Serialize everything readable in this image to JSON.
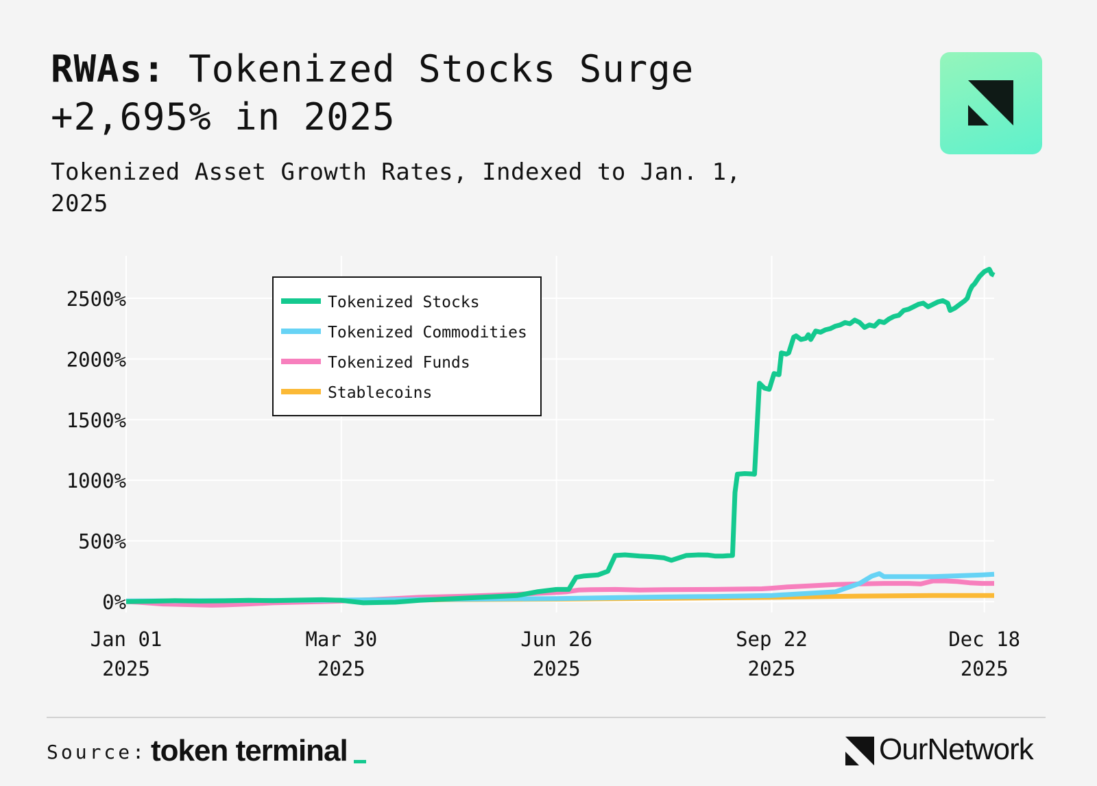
{
  "header": {
    "title_bold": "RWAs:",
    "title_rest": " Tokenized Stocks Surge +2,695% in 2025",
    "subtitle": "Tokenized Asset Growth Rates, Indexed to Jan. 1, 2025"
  },
  "footer": {
    "source_label": "Source:",
    "source_brand": "token terminal",
    "brand_name": "OurNetwork"
  },
  "colors": {
    "stocks": "#14c98f",
    "commodities": "#67d3f5",
    "funds": "#f77fbd",
    "stablecoins": "#fbb936",
    "grid": "#ffffff",
    "accent": "#5ef1cc"
  },
  "chart_data": {
    "type": "line",
    "title": "Tokenized Asset Growth Rates, Indexed to Jan. 1, 2025",
    "xlabel": "",
    "ylabel": "",
    "x_unit": "days since Jan 01 2025",
    "xlim": [
      0,
      355
    ],
    "ylim": [
      -90,
      2850
    ],
    "x_ticks": [
      {
        "x": 0,
        "line1": "Jan 01",
        "line2": "2025"
      },
      {
        "x": 88,
        "line1": "Mar 30",
        "line2": "2025"
      },
      {
        "x": 176,
        "line1": "Jun 26",
        "line2": "2025"
      },
      {
        "x": 264,
        "line1": "Sep 22",
        "line2": "2025"
      },
      {
        "x": 351,
        "line1": "Dec 18",
        "line2": "2025"
      }
    ],
    "y_ticks": [
      {
        "y": 0,
        "label": "0%"
      },
      {
        "y": 500,
        "label": "500%"
      },
      {
        "y": 1000,
        "label": "1000%"
      },
      {
        "y": 1500,
        "label": "1500%"
      },
      {
        "y": 2000,
        "label": "2000%"
      },
      {
        "y": 2500,
        "label": "2500%"
      }
    ],
    "legend": {
      "position": "top-left"
    },
    "series": [
      {
        "name": "Tokenized Stocks",
        "color": "#14c98f",
        "points": [
          [
            0,
            0
          ],
          [
            10,
            3
          ],
          [
            20,
            8
          ],
          [
            30,
            4
          ],
          [
            40,
            6
          ],
          [
            50,
            10
          ],
          [
            60,
            8
          ],
          [
            70,
            12
          ],
          [
            80,
            15
          ],
          [
            88,
            10
          ],
          [
            97,
            -10
          ],
          [
            110,
            -5
          ],
          [
            120,
            10
          ],
          [
            130,
            20
          ],
          [
            140,
            30
          ],
          [
            150,
            40
          ],
          [
            160,
            50
          ],
          [
            168,
            80
          ],
          [
            176,
            100
          ],
          [
            181,
            100
          ],
          [
            184,
            200
          ],
          [
            187,
            210
          ],
          [
            193,
            220
          ],
          [
            197,
            250
          ],
          [
            200,
            380
          ],
          [
            204,
            385
          ],
          [
            210,
            375
          ],
          [
            215,
            370
          ],
          [
            220,
            360
          ],
          [
            223,
            340
          ],
          [
            229,
            380
          ],
          [
            234,
            385
          ],
          [
            238,
            383
          ],
          [
            241,
            375
          ],
          [
            244,
            375
          ],
          [
            246,
            378
          ],
          [
            248,
            380
          ],
          [
            249,
            900
          ],
          [
            250,
            1050
          ],
          [
            253,
            1055
          ],
          [
            256,
            1052
          ],
          [
            257,
            1050
          ],
          [
            259,
            1800
          ],
          [
            261,
            1760
          ],
          [
            263,
            1750
          ],
          [
            265,
            1880
          ],
          [
            267,
            1870
          ],
          [
            268,
            2050
          ],
          [
            270,
            2040
          ],
          [
            271,
            2050
          ],
          [
            273,
            2180
          ],
          [
            274,
            2190
          ],
          [
            276,
            2160
          ],
          [
            278,
            2170
          ],
          [
            279,
            2200
          ],
          [
            280,
            2160
          ],
          [
            282,
            2230
          ],
          [
            284,
            2220
          ],
          [
            286,
            2240
          ],
          [
            288,
            2250
          ],
          [
            290,
            2270
          ],
          [
            292,
            2280
          ],
          [
            294,
            2300
          ],
          [
            296,
            2290
          ],
          [
            298,
            2320
          ],
          [
            300,
            2300
          ],
          [
            302,
            2260
          ],
          [
            304,
            2280
          ],
          [
            306,
            2270
          ],
          [
            308,
            2310
          ],
          [
            310,
            2300
          ],
          [
            312,
            2330
          ],
          [
            314,
            2350
          ],
          [
            316,
            2360
          ],
          [
            318,
            2400
          ],
          [
            320,
            2410
          ],
          [
            322,
            2430
          ],
          [
            324,
            2450
          ],
          [
            326,
            2460
          ],
          [
            328,
            2430
          ],
          [
            330,
            2450
          ],
          [
            332,
            2470
          ],
          [
            334,
            2480
          ],
          [
            336,
            2460
          ],
          [
            337,
            2400
          ],
          [
            339,
            2420
          ],
          [
            341,
            2450
          ],
          [
            343,
            2480
          ],
          [
            344,
            2500
          ],
          [
            345,
            2560
          ],
          [
            346,
            2600
          ],
          [
            347,
            2620
          ],
          [
            348,
            2650
          ],
          [
            349,
            2680
          ],
          [
            350,
            2700
          ],
          [
            351,
            2720
          ],
          [
            352,
            2730
          ],
          [
            353,
            2740
          ],
          [
            354,
            2700
          ],
          [
            355,
            2690
          ]
        ]
      },
      {
        "name": "Tokenized Commodities",
        "color": "#67d3f5",
        "points": [
          [
            0,
            5
          ],
          [
            40,
            8
          ],
          [
            88,
            12
          ],
          [
            130,
            18
          ],
          [
            176,
            25
          ],
          [
            200,
            32
          ],
          [
            220,
            38
          ],
          [
            240,
            42
          ],
          [
            264,
            50
          ],
          [
            290,
            80
          ],
          [
            300,
            150
          ],
          [
            305,
            210
          ],
          [
            308,
            230
          ],
          [
            310,
            205
          ],
          [
            330,
            205
          ],
          [
            350,
            220
          ],
          [
            355,
            225
          ]
        ]
      },
      {
        "name": "Tokenized Funds",
        "color": "#f77fbd",
        "points": [
          [
            0,
            0
          ],
          [
            5,
            -5
          ],
          [
            15,
            -20
          ],
          [
            25,
            -25
          ],
          [
            35,
            -30
          ],
          [
            40,
            -28
          ],
          [
            50,
            -20
          ],
          [
            60,
            -10
          ],
          [
            70,
            -5
          ],
          [
            80,
            0
          ],
          [
            88,
            5
          ],
          [
            100,
            15
          ],
          [
            110,
            25
          ],
          [
            120,
            35
          ],
          [
            130,
            40
          ],
          [
            140,
            45
          ],
          [
            150,
            52
          ],
          [
            160,
            60
          ],
          [
            170,
            70
          ],
          [
            176,
            75
          ],
          [
            180,
            80
          ],
          [
            185,
            95
          ],
          [
            190,
            98
          ],
          [
            200,
            100
          ],
          [
            210,
            95
          ],
          [
            220,
            98
          ],
          [
            240,
            100
          ],
          [
            260,
            105
          ],
          [
            264,
            110
          ],
          [
            270,
            120
          ],
          [
            280,
            130
          ],
          [
            290,
            140
          ],
          [
            300,
            145
          ],
          [
            310,
            150
          ],
          [
            320,
            150
          ],
          [
            325,
            145
          ],
          [
            330,
            170
          ],
          [
            335,
            170
          ],
          [
            340,
            165
          ],
          [
            345,
            155
          ],
          [
            350,
            150
          ],
          [
            355,
            150
          ]
        ]
      },
      {
        "name": "Stablecoins",
        "color": "#fbb936",
        "points": [
          [
            0,
            0
          ],
          [
            40,
            5
          ],
          [
            88,
            10
          ],
          [
            130,
            15
          ],
          [
            176,
            20
          ],
          [
            220,
            27
          ],
          [
            264,
            35
          ],
          [
            300,
            45
          ],
          [
            330,
            50
          ],
          [
            355,
            50
          ]
        ]
      }
    ]
  }
}
